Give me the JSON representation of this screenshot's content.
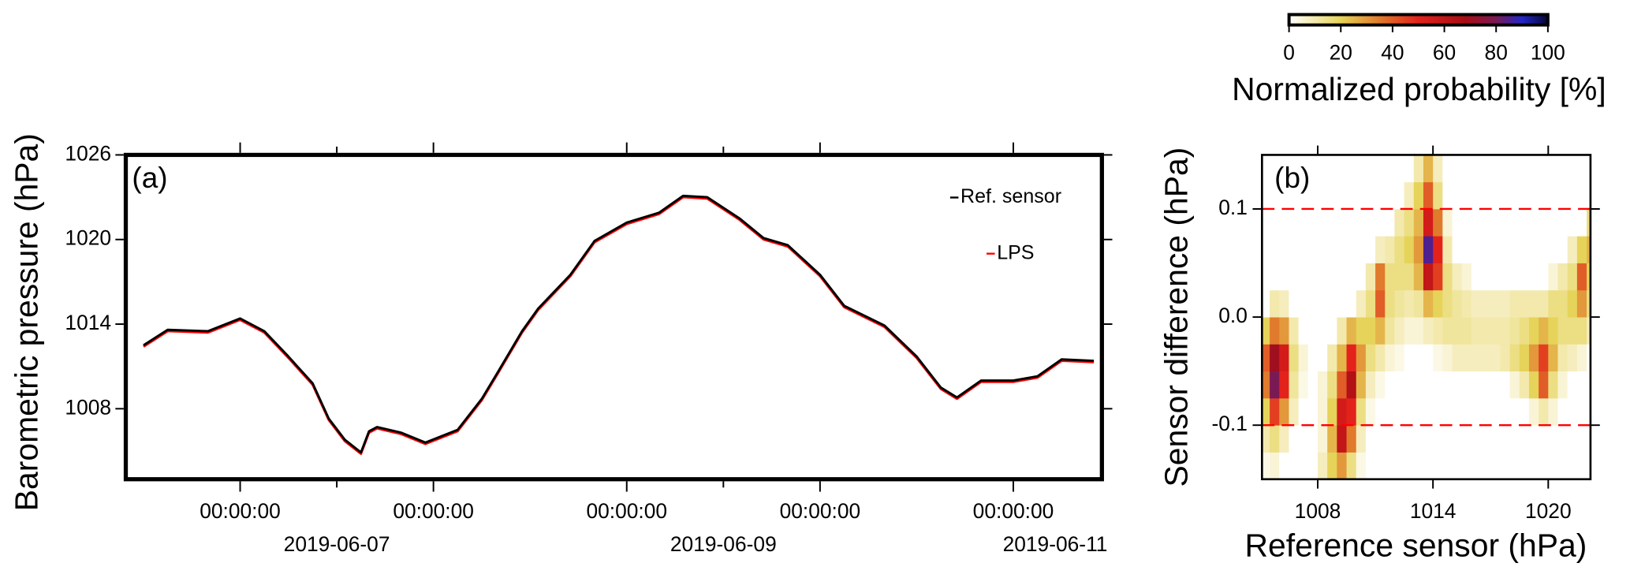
{
  "chart_data": [
    {
      "type": "line",
      "panel_label": "(a)",
      "ylabel": "Barometric pressure (hPa)",
      "x": [
        "2019-06-06T12:00:00",
        "2019-06-06T15:00:00",
        "2019-06-06T20:00:00",
        "2019-06-07T00:00:00",
        "2019-06-07T03:00:00",
        "2019-06-07T06:00:00",
        "2019-06-07T09:00:00",
        "2019-06-07T11:00:00",
        "2019-06-07T13:00:00",
        "2019-06-07T15:00:00",
        "2019-06-07T16:00:00",
        "2019-06-07T17:00:00",
        "2019-06-07T20:00:00",
        "2019-06-07T23:00:00",
        "2019-06-08T03:00:00",
        "2019-06-08T06:00:00",
        "2019-06-08T08:00:00",
        "2019-06-08T11:00:00",
        "2019-06-08T13:00:00",
        "2019-06-08T17:00:00",
        "2019-06-08T20:00:00",
        "2019-06-09T00:00:00",
        "2019-06-09T04:00:00",
        "2019-06-09T07:00:00",
        "2019-06-09T10:00:00",
        "2019-06-09T14:00:00",
        "2019-06-09T17:00:00",
        "2019-06-09T20:00:00",
        "2019-06-10T00:00:00",
        "2019-06-10T03:00:00",
        "2019-06-10T08:00:00",
        "2019-06-10T12:00:00",
        "2019-06-10T15:00:00",
        "2019-06-10T17:00:00",
        "2019-06-10T20:00:00",
        "2019-06-11T00:00:00",
        "2019-06-11T03:00:00",
        "2019-06-11T06:00:00",
        "2019-06-11T10:00:00"
      ],
      "series": [
        {
          "name": "Ref. sensor",
          "color": "#000000",
          "values": [
            1012.5,
            1013.6,
            1013.5,
            1014.4,
            1013.5,
            1011.7,
            1009.8,
            1007.3,
            1005.8,
            1004.9,
            1006.4,
            1006.7,
            1006.3,
            1005.6,
            1006.5,
            1008.7,
            1010.6,
            1013.5,
            1015.1,
            1017.5,
            1019.9,
            1021.2,
            1021.9,
            1023.1,
            1023.0,
            1021.5,
            1020.1,
            1019.6,
            1017.5,
            1015.3,
            1013.9,
            1011.7,
            1009.5,
            1008.8,
            1010.0,
            1010.0,
            1010.3,
            1011.5,
            1011.4
          ]
        },
        {
          "name": "LPS",
          "color": "#ff0000",
          "values": [
            1012.4,
            1013.5,
            1013.4,
            1014.3,
            1013.4,
            1011.6,
            1009.7,
            1007.2,
            1005.7,
            1004.8,
            1006.3,
            1006.6,
            1006.2,
            1005.5,
            1006.4,
            1008.6,
            1010.5,
            1013.4,
            1015.0,
            1017.4,
            1019.8,
            1021.1,
            1021.8,
            1023.0,
            1022.9,
            1021.4,
            1020.0,
            1019.5,
            1017.4,
            1015.2,
            1013.8,
            1011.6,
            1009.4,
            1008.7,
            1009.9,
            1009.9,
            1010.2,
            1011.4,
            1011.3
          ]
        }
      ],
      "xlim": [
        "2019-06-06T09:48:00",
        "2019-06-11T11:00:00"
      ],
      "ylim": [
        1003,
        1026
      ],
      "yticks": [
        1008,
        1014,
        1020,
        1026
      ],
      "xticks": [
        {
          "value": "2019-06-07T00:00:00",
          "label": "00:00:00"
        },
        {
          "value": "2019-06-08T00:00:00",
          "label": "00:00:00"
        },
        {
          "value": "2019-06-09T00:00:00",
          "label": "00:00:00"
        },
        {
          "value": "2019-06-10T00:00:00",
          "label": "00:00:00"
        },
        {
          "value": "2019-06-11T00:00:00",
          "label": "00:00:00"
        }
      ],
      "date_ticks": [
        {
          "value": "2019-06-07T12:00:00",
          "label": "2019-06-07"
        },
        {
          "value": "2019-06-09T12:00:00",
          "label": "2019-06-09"
        },
        {
          "value": "2019-06-11T12:00:00",
          "label": "2019-06-11"
        }
      ]
    },
    {
      "type": "heatmap",
      "panel_label": "(b)",
      "xlabel": "Reference sensor (hPa)",
      "ylabel": "Sensor difference (hPa)",
      "xbins": [
        1005,
        1005.5,
        1006,
        1006.5,
        1007,
        1007.5,
        1008,
        1008.5,
        1009,
        1009.5,
        1010,
        1010.5,
        1011,
        1011.5,
        1012,
        1012.5,
        1013,
        1013.5,
        1014,
        1014.5,
        1015,
        1015.5,
        1016,
        1016.5,
        1017,
        1017.5,
        1018,
        1018.5,
        1019,
        1019.5,
        1020,
        1020.5,
        1021,
        1021.5,
        1022,
        1022.5
      ],
      "ybins": [
        -0.15,
        -0.125,
        -0.1,
        -0.075,
        -0.05,
        -0.025,
        0,
        0.025,
        0.05,
        0.075,
        0.1,
        0.125,
        0.15
      ],
      "z": [
        [
          3,
          5,
          0,
          0,
          0,
          0,
          8,
          20,
          30,
          15,
          3,
          0,
          0,
          0,
          0,
          0,
          0,
          0,
          0,
          0,
          0,
          0,
          0,
          0,
          0,
          0,
          0,
          0,
          0,
          0,
          0,
          0,
          0,
          0,
          0
        ],
        [
          10,
          15,
          8,
          0,
          0,
          0,
          5,
          25,
          60,
          35,
          8,
          0,
          0,
          0,
          0,
          0,
          0,
          0,
          0,
          0,
          0,
          0,
          0,
          0,
          0,
          0,
          0,
          0,
          0,
          0,
          0,
          0,
          0,
          0,
          0
        ],
        [
          20,
          45,
          30,
          8,
          0,
          0,
          5,
          20,
          55,
          50,
          15,
          3,
          0,
          0,
          0,
          0,
          0,
          0,
          0,
          0,
          0,
          0,
          0,
          0,
          0,
          0,
          0,
          0,
          5,
          10,
          5,
          0,
          0,
          0,
          0
        ],
        [
          35,
          80,
          50,
          12,
          3,
          0,
          5,
          15,
          40,
          65,
          25,
          8,
          3,
          0,
          0,
          0,
          0,
          0,
          0,
          0,
          0,
          0,
          0,
          0,
          0,
          0,
          5,
          10,
          20,
          40,
          15,
          5,
          0,
          0,
          0
        ],
        [
          40,
          70,
          55,
          15,
          5,
          0,
          0,
          10,
          25,
          50,
          30,
          15,
          10,
          5,
          3,
          0,
          0,
          0,
          3,
          5,
          8,
          8,
          8,
          8,
          8,
          10,
          15,
          20,
          30,
          45,
          25,
          10,
          8,
          5,
          0
        ],
        [
          20,
          35,
          30,
          10,
          0,
          0,
          0,
          0,
          10,
          25,
          20,
          20,
          25,
          12,
          8,
          5,
          5,
          8,
          10,
          12,
          12,
          12,
          10,
          10,
          10,
          10,
          12,
          15,
          20,
          25,
          20,
          15,
          15,
          15,
          8
        ],
        [
          0,
          10,
          8,
          0,
          0,
          0,
          0,
          0,
          0,
          0,
          8,
          15,
          40,
          15,
          12,
          10,
          12,
          25,
          20,
          15,
          12,
          10,
          8,
          8,
          8,
          8,
          10,
          10,
          10,
          10,
          15,
          15,
          20,
          30,
          15
        ],
        [
          0,
          0,
          0,
          0,
          0,
          0,
          0,
          0,
          0,
          0,
          0,
          10,
          35,
          15,
          15,
          15,
          25,
          60,
          45,
          15,
          8,
          5,
          0,
          0,
          0,
          0,
          0,
          0,
          0,
          0,
          5,
          10,
          15,
          40,
          20
        ],
        [
          0,
          0,
          0,
          0,
          0,
          0,
          0,
          0,
          0,
          0,
          0,
          0,
          8,
          10,
          15,
          20,
          30,
          85,
          50,
          10,
          0,
          0,
          0,
          0,
          0,
          0,
          0,
          0,
          0,
          0,
          0,
          0,
          8,
          20,
          25
        ],
        [
          0,
          0,
          0,
          0,
          0,
          0,
          0,
          0,
          0,
          0,
          0,
          0,
          0,
          0,
          10,
          15,
          25,
          55,
          35,
          5,
          0,
          0,
          0,
          0,
          0,
          0,
          0,
          0,
          0,
          0,
          0,
          0,
          0,
          0,
          15
        ],
        [
          0,
          0,
          0,
          0,
          0,
          0,
          0,
          0,
          0,
          0,
          0,
          0,
          0,
          0,
          0,
          8,
          20,
          40,
          15,
          0,
          0,
          0,
          0,
          0,
          0,
          0,
          0,
          0,
          0,
          0,
          0,
          0,
          0,
          0,
          0
        ],
        [
          0,
          0,
          0,
          0,
          0,
          0,
          0,
          0,
          0,
          0,
          0,
          0,
          0,
          0,
          0,
          0,
          10,
          25,
          8,
          0,
          0,
          0,
          0,
          0,
          0,
          0,
          0,
          0,
          0,
          0,
          0,
          0,
          0,
          0,
          0
        ]
      ],
      "xlim": [
        1005.1,
        1022.2
      ],
      "ylim": [
        -0.15,
        0.15
      ],
      "xticks": [
        1008,
        1014,
        1020
      ],
      "yticks": [
        0.1,
        {
          "value": 0,
          "label": "0.0"
        },
        -0.1
      ],
      "hlines": {
        "values": [
          0.1,
          -0.1
        ],
        "color": "#ff0000",
        "dashed": true
      },
      "colorbar": {
        "label": "Normalized probability [%]",
        "lim": [
          0,
          100
        ],
        "ticks": [
          0,
          20,
          40,
          60,
          80,
          100
        ],
        "colormap": [
          [
            0,
            "#ffffff"
          ],
          [
            20,
            "#e6d35a"
          ],
          [
            35,
            "#e07a2c"
          ],
          [
            50,
            "#e3221c"
          ],
          [
            68,
            "#a80d14"
          ],
          [
            80,
            "#7a1a55"
          ],
          [
            90,
            "#2326c8"
          ],
          [
            100,
            "#050535"
          ]
        ]
      }
    }
  ]
}
